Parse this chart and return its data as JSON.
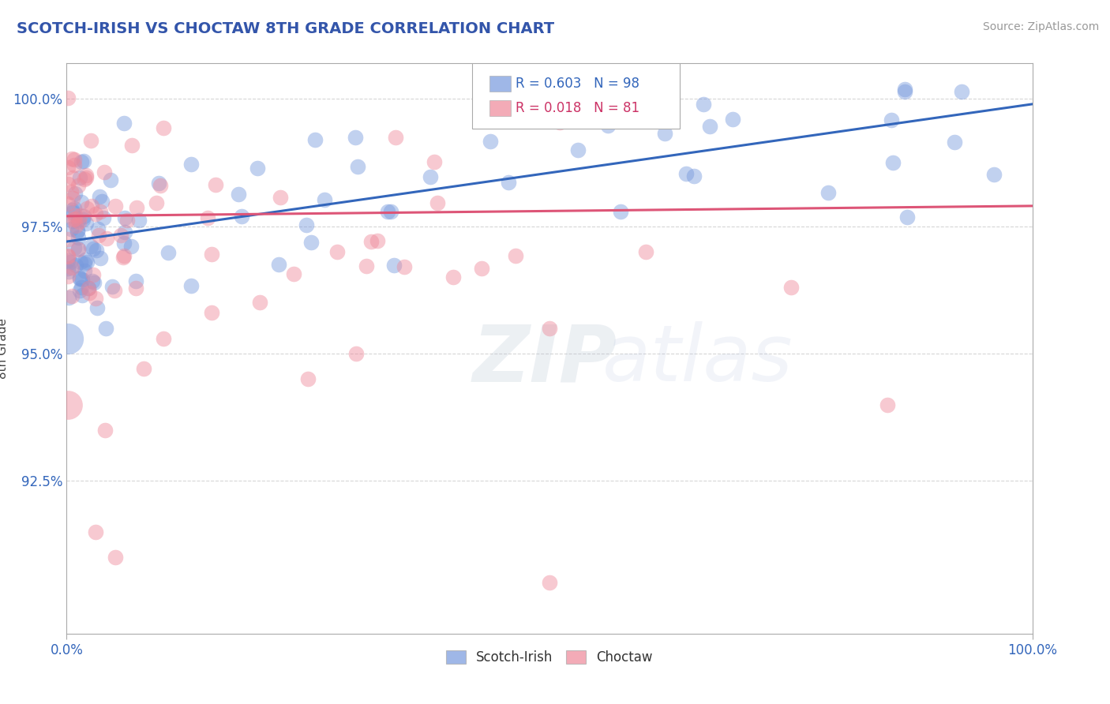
{
  "title": "SCOTCH-IRISH VS CHOCTAW 8TH GRADE CORRELATION CHART",
  "title_color": "#3355aa",
  "ylabel": "8th Grade",
  "ylabel_color": "#444444",
  "source_text": "Source: ZipAtlas.com",
  "watermark_zip": "ZIP",
  "watermark_atlas": "atlas",
  "xlim": [
    0.0,
    1.0
  ],
  "ylim": [
    0.895,
    1.007
  ],
  "yticks": [
    0.925,
    0.95,
    0.975,
    1.0
  ],
  "ytick_labels": [
    "92.5%",
    "95.0%",
    "97.5%",
    "100.0%"
  ],
  "xtick_labels": [
    "0.0%",
    "100.0%"
  ],
  "xticks": [
    0.0,
    1.0
  ],
  "legend_blue_r": "R = 0.603",
  "legend_blue_n": "N = 98",
  "legend_pink_r": "R = 0.018",
  "legend_pink_n": "N = 81",
  "blue_color": "#7799dd",
  "pink_color": "#ee8899",
  "blue_line_color": "#3366bb",
  "pink_line_color": "#dd5577",
  "grid_color": "#cccccc",
  "background_color": "#ffffff",
  "blue_line_x0": 0.0,
  "blue_line_y0": 0.972,
  "blue_line_x1": 1.0,
  "blue_line_y1": 0.999,
  "pink_line_x0": 0.0,
  "pink_line_y0": 0.977,
  "pink_line_x1": 1.0,
  "pink_line_y1": 0.979
}
